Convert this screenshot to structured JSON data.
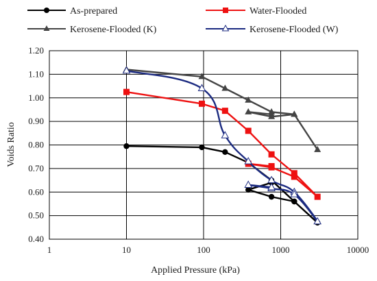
{
  "chart_data": {
    "type": "line",
    "xscale": "log",
    "xlabel": "Applied Pressure (kPa)",
    "ylabel": "Voids Ratio",
    "xlim": [
      1,
      10000
    ],
    "ylim": [
      0.4,
      1.2
    ],
    "xticks": [
      1,
      10,
      100,
      1000,
      10000
    ],
    "xtick_labels": [
      "1",
      "10",
      "100",
      "1000",
      "10000"
    ],
    "yticks": [
      0.4,
      0.5,
      0.6,
      0.7,
      0.8,
      0.9,
      1.0,
      1.1,
      1.2
    ],
    "ytick_labels": [
      "0.40",
      "0.50",
      "0.60",
      "0.70",
      "0.80",
      "0.90",
      "1.00",
      "1.10",
      "1.20"
    ],
    "grid": true,
    "legend_position": "top",
    "series": [
      {
        "name": "As-prepared",
        "color": "#000000",
        "marker": "circle",
        "smooth": false,
        "x": [
          10,
          95,
          190,
          380,
          760,
          1500,
          3000,
          1500,
          760,
          380,
          760
        ],
        "y": [
          0.795,
          0.79,
          0.77,
          0.725,
          0.65,
          0.56,
          0.47,
          0.56,
          0.58,
          0.61,
          0.64
        ]
      },
      {
        "name": "Water-Flooded",
        "color": "#ee1111",
        "marker": "square",
        "smooth": false,
        "x": [
          10,
          95,
          190,
          380,
          760,
          1500,
          3000,
          1500,
          760,
          380,
          760
        ],
        "y": [
          1.025,
          0.975,
          0.945,
          0.86,
          0.76,
          0.68,
          0.58,
          0.665,
          0.705,
          0.72,
          0.71
        ]
      },
      {
        "name": "Kerosene-Flooded (K)",
        "color": "#444444",
        "marker": "triangle-filled",
        "smooth": false,
        "x": [
          10,
          95,
          190,
          380,
          760,
          1500,
          3000,
          1500,
          760,
          380,
          760
        ],
        "y": [
          1.12,
          1.09,
          1.04,
          0.99,
          0.94,
          0.93,
          0.78,
          0.93,
          0.92,
          0.94,
          0.93
        ]
      },
      {
        "name": "Kerosene-Flooded (W)",
        "color": "#1b2a80",
        "marker": "triangle-open",
        "smooth": true,
        "x": [
          10,
          95,
          190,
          380,
          760,
          1500,
          3000,
          1500,
          760,
          380,
          760
        ],
        "y": [
          1.115,
          1.04,
          0.84,
          0.73,
          0.65,
          0.6,
          0.475,
          0.59,
          0.615,
          0.63,
          0.62
        ]
      }
    ]
  }
}
